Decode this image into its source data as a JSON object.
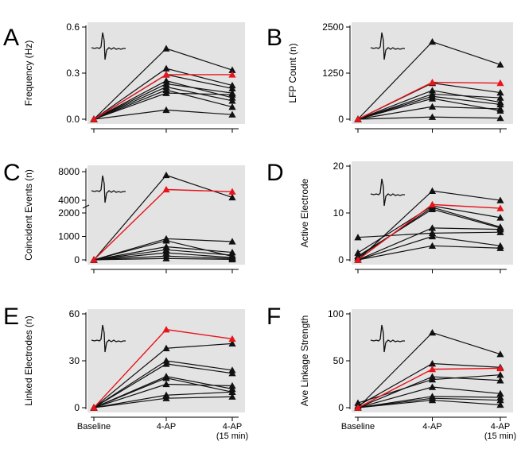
{
  "figure": {
    "x_categories": [
      "Baseline",
      "4-AP",
      "4-AP"
    ],
    "x_category_sublabel": "(15 min)",
    "colors": {
      "series": "#111111",
      "highlight": "#e8141b",
      "background": "#e3e3e3"
    }
  },
  "chart_data": [
    {
      "panel": "A",
      "type": "line",
      "ylabel": "Frequency (Hz)",
      "ylim": [
        0,
        0.6
      ],
      "yticks": [
        "0.0",
        "0.3",
        "0.6"
      ],
      "ytick_values": [
        0,
        0.3,
        0.6
      ],
      "series": [
        {
          "name": "slice-1",
          "values": [
            0,
            0.46,
            0.32
          ]
        },
        {
          "name": "slice-2",
          "values": [
            0,
            0.33,
            0.22
          ]
        },
        {
          "name": "slice-3",
          "values": [
            0,
            0.29,
            0.2
          ]
        },
        {
          "name": "slice-4",
          "values": [
            0,
            0.25,
            0.14
          ]
        },
        {
          "name": "slice-5",
          "values": [
            0,
            0.23,
            0.17
          ]
        },
        {
          "name": "slice-6",
          "values": [
            0,
            0.21,
            0.12
          ]
        },
        {
          "name": "slice-7",
          "values": [
            0,
            0.19,
            0.08
          ]
        },
        {
          "name": "slice-8",
          "values": [
            0,
            0.17,
            0.16
          ]
        },
        {
          "name": "slice-9",
          "values": [
            0,
            0.06,
            0.03
          ]
        },
        {
          "name": "highlight",
          "values": [
            0,
            0.29,
            0.29
          ],
          "highlight": true
        }
      ]
    },
    {
      "panel": "B",
      "type": "line",
      "ylabel": "LFP Count (n)",
      "ylim": [
        0,
        2500
      ],
      "yticks": [
        "0",
        "1250",
        "2500"
      ],
      "ytick_values": [
        0,
        1250,
        2500
      ],
      "series": [
        {
          "name": "slice-1",
          "values": [
            0,
            2100,
            1480
          ]
        },
        {
          "name": "slice-2",
          "values": [
            0,
            980,
            720
          ]
        },
        {
          "name": "slice-3",
          "values": [
            0,
            780,
            460
          ]
        },
        {
          "name": "slice-4",
          "values": [
            0,
            680,
            580
          ]
        },
        {
          "name": "slice-5",
          "values": [
            0,
            620,
            400
          ]
        },
        {
          "name": "slice-6",
          "values": [
            0,
            560,
            230
          ]
        },
        {
          "name": "slice-7",
          "values": [
            0,
            340,
            280
          ]
        },
        {
          "name": "slice-8",
          "values": [
            0,
            60,
            30
          ]
        },
        {
          "name": "highlight",
          "values": [
            0,
            1000,
            980
          ],
          "highlight": true
        }
      ]
    },
    {
      "panel": "C",
      "type": "line",
      "ylabel": "Coincident Events (n)",
      "broken_axis": true,
      "yticks": [
        "0",
        "1000",
        "2000",
        "4000",
        "8000"
      ],
      "ytick_values": [
        0,
        1000,
        2000,
        4000,
        8000
      ],
      "series": [
        {
          "name": "slice-1",
          "values": [
            0,
            7500,
            4400
          ]
        },
        {
          "name": "slice-2",
          "values": [
            0,
            900,
            780
          ]
        },
        {
          "name": "slice-3",
          "values": [
            0,
            820,
            150
          ]
        },
        {
          "name": "slice-4",
          "values": [
            0,
            560,
            320
          ]
        },
        {
          "name": "slice-5",
          "values": [
            0,
            430,
            200
          ]
        },
        {
          "name": "slice-6",
          "values": [
            0,
            300,
            100
          ]
        },
        {
          "name": "slice-7",
          "values": [
            0,
            160,
            60
          ]
        },
        {
          "name": "slice-8",
          "values": [
            0,
            60,
            20
          ]
        },
        {
          "name": "highlight",
          "values": [
            0,
            5500,
            5200
          ],
          "highlight": true
        }
      ]
    },
    {
      "panel": "D",
      "type": "line",
      "ylabel": "Active Electrode",
      "ylim": [
        0,
        20
      ],
      "yticks": [
        "0",
        "10",
        "20"
      ],
      "ytick_values": [
        0,
        10,
        20
      ],
      "series": [
        {
          "name": "slice-1",
          "values": [
            0,
            14.7,
            12.7
          ]
        },
        {
          "name": "slice-2",
          "values": [
            4.8,
            5.7,
            5.9
          ]
        },
        {
          "name": "slice-3",
          "values": [
            1.5,
            11.5,
            9
          ]
        },
        {
          "name": "slice-4",
          "values": [
            0.5,
            11.2,
            7
          ]
        },
        {
          "name": "slice-5",
          "values": [
            0.8,
            10.8,
            6.8
          ]
        },
        {
          "name": "slice-6",
          "values": [
            0,
            6.8,
            6.5
          ]
        },
        {
          "name": "slice-7",
          "values": [
            0,
            5,
            3
          ]
        },
        {
          "name": "slice-8",
          "values": [
            0,
            3,
            2.5
          ]
        },
        {
          "name": "highlight",
          "values": [
            0,
            11.8,
            11
          ],
          "highlight": true
        }
      ]
    },
    {
      "panel": "E",
      "type": "line",
      "ylabel": "Linked Electrodes (n)",
      "ylim": [
        0,
        60
      ],
      "yticks": [
        "0",
        "30",
        "60"
      ],
      "ytick_values": [
        0,
        30,
        60
      ],
      "series": [
        {
          "name": "slice-1",
          "values": [
            0,
            38,
            41
          ]
        },
        {
          "name": "slice-2",
          "values": [
            0,
            30,
            24
          ]
        },
        {
          "name": "slice-3",
          "values": [
            0,
            28,
            22
          ]
        },
        {
          "name": "slice-4",
          "values": [
            0,
            20,
            12
          ]
        },
        {
          "name": "slice-5",
          "values": [
            0,
            19,
            10
          ]
        },
        {
          "name": "slice-6",
          "values": [
            0,
            15,
            14
          ]
        },
        {
          "name": "slice-7",
          "values": [
            0,
            8,
            10
          ]
        },
        {
          "name": "slice-8",
          "values": [
            0,
            6,
            7
          ]
        },
        {
          "name": "highlight",
          "values": [
            0,
            50,
            44
          ],
          "highlight": true
        }
      ]
    },
    {
      "panel": "F",
      "type": "line",
      "ylabel": "Ave Linkage Strength",
      "ylim": [
        0,
        100
      ],
      "yticks": [
        "0",
        "50",
        "100"
      ],
      "ytick_values": [
        0,
        50,
        100
      ],
      "series": [
        {
          "name": "slice-1",
          "values": [
            0,
            80,
            57
          ]
        },
        {
          "name": "slice-2",
          "values": [
            2,
            47,
            43
          ]
        },
        {
          "name": "slice-3",
          "values": [
            0,
            33,
            29
          ]
        },
        {
          "name": "slice-4",
          "values": [
            5,
            30,
            35
          ]
        },
        {
          "name": "slice-5",
          "values": [
            0,
            22,
            15
          ]
        },
        {
          "name": "slice-6",
          "values": [
            0,
            12,
            11
          ]
        },
        {
          "name": "slice-7",
          "values": [
            0,
            10,
            8
          ]
        },
        {
          "name": "slice-8",
          "values": [
            0,
            8,
            3
          ]
        },
        {
          "name": "highlight",
          "values": [
            0,
            41,
            42
          ],
          "highlight": true
        }
      ]
    }
  ]
}
